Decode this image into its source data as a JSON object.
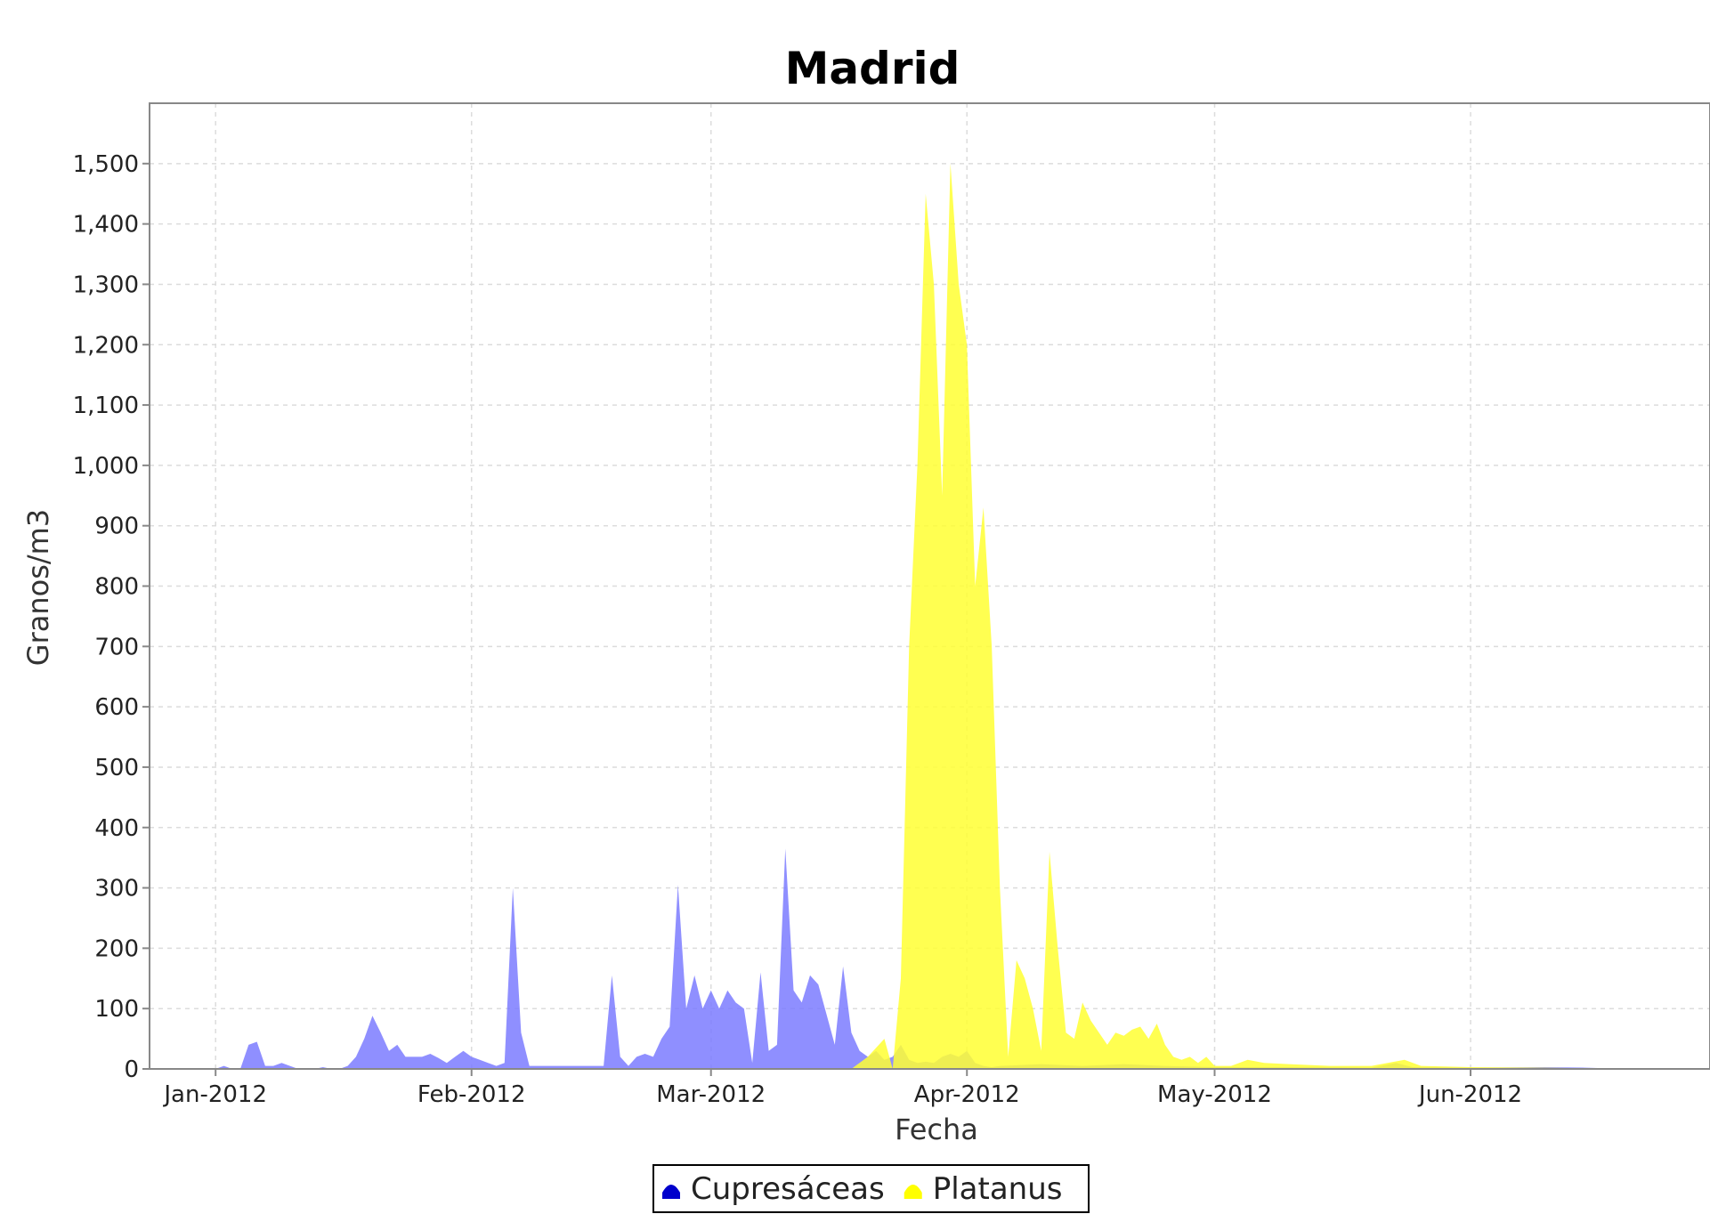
{
  "chart_data": {
    "type": "area",
    "title": "Madrid",
    "xlabel": "Fecha",
    "ylabel": "Granos/m3",
    "ylim": [
      0,
      1600
    ],
    "xlim": [
      "2011-12-24",
      "2012-06-30"
    ],
    "yticks": [
      0,
      100,
      200,
      300,
      400,
      500,
      600,
      700,
      800,
      900,
      1000,
      1100,
      1200,
      1300,
      1400,
      1500
    ],
    "ytick_labels": [
      "0",
      "100",
      "200",
      "300",
      "400",
      "500",
      "600",
      "700",
      "800",
      "900",
      "1,000",
      "1,100",
      "1,200",
      "1,300",
      "1,400",
      "1,500"
    ],
    "xticks": [
      "2012-01-01",
      "2012-02-01",
      "2012-03-01",
      "2012-04-01",
      "2012-05-01",
      "2012-06-01"
    ],
    "xtick_labels": [
      "Jan-2012",
      "Feb-2012",
      "Mar-2012",
      "Apr-2012",
      "May-2012",
      "Jun-2012"
    ],
    "grid": true,
    "legend_position": "bottom-center",
    "series": [
      {
        "name": "Cupresáceas",
        "color": "#7b7bff",
        "legend_color": "#0000cc",
        "points": [
          [
            "2012-01-01",
            0
          ],
          [
            "2012-01-02",
            5
          ],
          [
            "2012-01-03",
            0
          ],
          [
            "2012-01-04",
            0
          ],
          [
            "2012-01-05",
            40
          ],
          [
            "2012-01-06",
            45
          ],
          [
            "2012-01-07",
            5
          ],
          [
            "2012-01-08",
            5
          ],
          [
            "2012-01-09",
            10
          ],
          [
            "2012-01-10",
            5
          ],
          [
            "2012-01-11",
            0
          ],
          [
            "2012-01-12",
            0
          ],
          [
            "2012-01-13",
            0
          ],
          [
            "2012-01-14",
            3
          ],
          [
            "2012-01-15",
            0
          ],
          [
            "2012-01-16",
            0
          ],
          [
            "2012-01-17",
            5
          ],
          [
            "2012-01-18",
            20
          ],
          [
            "2012-01-19",
            50
          ],
          [
            "2012-01-20",
            88
          ],
          [
            "2012-01-21",
            60
          ],
          [
            "2012-01-22",
            30
          ],
          [
            "2012-01-23",
            40
          ],
          [
            "2012-01-24",
            20
          ],
          [
            "2012-01-25",
            20
          ],
          [
            "2012-01-26",
            20
          ],
          [
            "2012-01-27",
            25
          ],
          [
            "2012-01-28",
            18
          ],
          [
            "2012-01-29",
            10
          ],
          [
            "2012-01-30",
            20
          ],
          [
            "2012-01-31",
            30
          ],
          [
            "2012-02-01",
            20
          ],
          [
            "2012-02-02",
            15
          ],
          [
            "2012-02-03",
            10
          ],
          [
            "2012-02-04",
            5
          ],
          [
            "2012-02-05",
            10
          ],
          [
            "2012-02-06",
            300
          ],
          [
            "2012-02-07",
            60
          ],
          [
            "2012-02-08",
            5
          ],
          [
            "2012-02-09",
            5
          ],
          [
            "2012-02-10",
            5
          ],
          [
            "2012-02-11",
            5
          ],
          [
            "2012-02-12",
            5
          ],
          [
            "2012-02-13",
            5
          ],
          [
            "2012-02-14",
            5
          ],
          [
            "2012-02-15",
            5
          ],
          [
            "2012-02-16",
            5
          ],
          [
            "2012-02-17",
            5
          ],
          [
            "2012-02-18",
            155
          ],
          [
            "2012-02-19",
            20
          ],
          [
            "2012-02-20",
            5
          ],
          [
            "2012-02-21",
            20
          ],
          [
            "2012-02-22",
            25
          ],
          [
            "2012-02-23",
            20
          ],
          [
            "2012-02-24",
            50
          ],
          [
            "2012-02-25",
            70
          ],
          [
            "2012-02-26",
            305
          ],
          [
            "2012-02-27",
            100
          ],
          [
            "2012-02-28",
            155
          ],
          [
            "2012-02-29",
            100
          ],
          [
            "2012-03-01",
            130
          ],
          [
            "2012-03-02",
            100
          ],
          [
            "2012-03-03",
            130
          ],
          [
            "2012-03-04",
            110
          ],
          [
            "2012-03-05",
            100
          ],
          [
            "2012-03-06",
            10
          ],
          [
            "2012-03-07",
            160
          ],
          [
            "2012-03-08",
            30
          ],
          [
            "2012-03-09",
            40
          ],
          [
            "2012-03-10",
            365
          ],
          [
            "2012-03-11",
            130
          ],
          [
            "2012-03-12",
            110
          ],
          [
            "2012-03-13",
            155
          ],
          [
            "2012-03-14",
            140
          ],
          [
            "2012-03-15",
            90
          ],
          [
            "2012-03-16",
            40
          ],
          [
            "2012-03-17",
            170
          ],
          [
            "2012-03-18",
            60
          ],
          [
            "2012-03-19",
            30
          ],
          [
            "2012-03-20",
            20
          ],
          [
            "2012-03-21",
            30
          ],
          [
            "2012-03-22",
            15
          ],
          [
            "2012-03-23",
            20
          ],
          [
            "2012-03-24",
            40
          ],
          [
            "2012-03-25",
            15
          ],
          [
            "2012-03-26",
            10
          ],
          [
            "2012-03-27",
            12
          ],
          [
            "2012-03-28",
            10
          ],
          [
            "2012-03-29",
            20
          ],
          [
            "2012-03-30",
            25
          ],
          [
            "2012-03-31",
            20
          ],
          [
            "2012-04-01",
            30
          ],
          [
            "2012-04-02",
            10
          ],
          [
            "2012-04-03",
            5
          ],
          [
            "2012-04-04",
            3
          ],
          [
            "2012-04-05",
            5
          ],
          [
            "2012-04-10",
            8
          ],
          [
            "2012-04-15",
            5
          ],
          [
            "2012-04-20",
            8
          ],
          [
            "2012-04-25",
            5
          ],
          [
            "2012-05-01",
            3
          ],
          [
            "2012-05-10",
            3
          ],
          [
            "2012-05-20",
            2
          ],
          [
            "2012-05-23",
            10
          ],
          [
            "2012-05-25",
            3
          ],
          [
            "2012-06-01",
            2
          ],
          [
            "2012-06-10",
            3
          ],
          [
            "2012-06-15",
            2
          ],
          [
            "2012-06-20",
            0
          ]
        ]
      },
      {
        "name": "Platanus",
        "color": "#ffff33",
        "legend_color": "#ffff00",
        "points": [
          [
            "2012-03-18",
            0
          ],
          [
            "2012-03-20",
            20
          ],
          [
            "2012-03-22",
            50
          ],
          [
            "2012-03-23",
            0
          ],
          [
            "2012-03-24",
            150
          ],
          [
            "2012-03-25",
            700
          ],
          [
            "2012-03-26",
            1000
          ],
          [
            "2012-03-27",
            1450
          ],
          [
            "2012-03-28",
            1300
          ],
          [
            "2012-03-29",
            950
          ],
          [
            "2012-03-30",
            1500
          ],
          [
            "2012-03-31",
            1300
          ],
          [
            "2012-04-01",
            1200
          ],
          [
            "2012-04-02",
            800
          ],
          [
            "2012-04-03",
            930
          ],
          [
            "2012-04-04",
            700
          ],
          [
            "2012-04-05",
            300
          ],
          [
            "2012-04-06",
            20
          ],
          [
            "2012-04-07",
            180
          ],
          [
            "2012-04-08",
            150
          ],
          [
            "2012-04-09",
            100
          ],
          [
            "2012-04-10",
            30
          ],
          [
            "2012-04-11",
            360
          ],
          [
            "2012-04-12",
            200
          ],
          [
            "2012-04-13",
            60
          ],
          [
            "2012-04-14",
            50
          ],
          [
            "2012-04-15",
            110
          ],
          [
            "2012-04-16",
            80
          ],
          [
            "2012-04-17",
            60
          ],
          [
            "2012-04-18",
            40
          ],
          [
            "2012-04-19",
            60
          ],
          [
            "2012-04-20",
            55
          ],
          [
            "2012-04-21",
            65
          ],
          [
            "2012-04-22",
            70
          ],
          [
            "2012-04-23",
            50
          ],
          [
            "2012-04-24",
            75
          ],
          [
            "2012-04-25",
            40
          ],
          [
            "2012-04-26",
            20
          ],
          [
            "2012-04-27",
            15
          ],
          [
            "2012-04-28",
            20
          ],
          [
            "2012-04-29",
            10
          ],
          [
            "2012-04-30",
            20
          ],
          [
            "2012-05-01",
            5
          ],
          [
            "2012-05-03",
            5
          ],
          [
            "2012-05-05",
            15
          ],
          [
            "2012-05-07",
            10
          ],
          [
            "2012-05-10",
            8
          ],
          [
            "2012-05-15",
            5
          ],
          [
            "2012-05-20",
            5
          ],
          [
            "2012-05-24",
            15
          ],
          [
            "2012-05-26",
            5
          ],
          [
            "2012-06-01",
            3
          ],
          [
            "2012-06-10",
            2
          ],
          [
            "2012-06-20",
            0
          ]
        ]
      }
    ]
  }
}
